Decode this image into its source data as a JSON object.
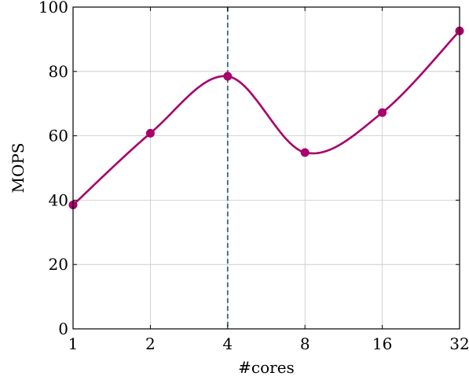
{
  "chart_data": {
    "type": "line",
    "categories": [
      "1",
      "2",
      "4",
      "8",
      "16",
      "32"
    ],
    "series": [
      {
        "values": [
          38.5,
          60.8,
          78.5,
          54.8,
          67.2,
          92.6
        ],
        "color": "#a8006b"
      }
    ],
    "xlabel": "#cores",
    "ylabel": "MOPS",
    "ylim": [
      0,
      100
    ],
    "yticks": [
      0,
      20,
      40,
      60,
      80,
      100
    ],
    "grid": true,
    "smooth": true,
    "marker": "circle",
    "vline": {
      "category": "4",
      "style": "dashed",
      "color": "#2f6b78"
    }
  }
}
